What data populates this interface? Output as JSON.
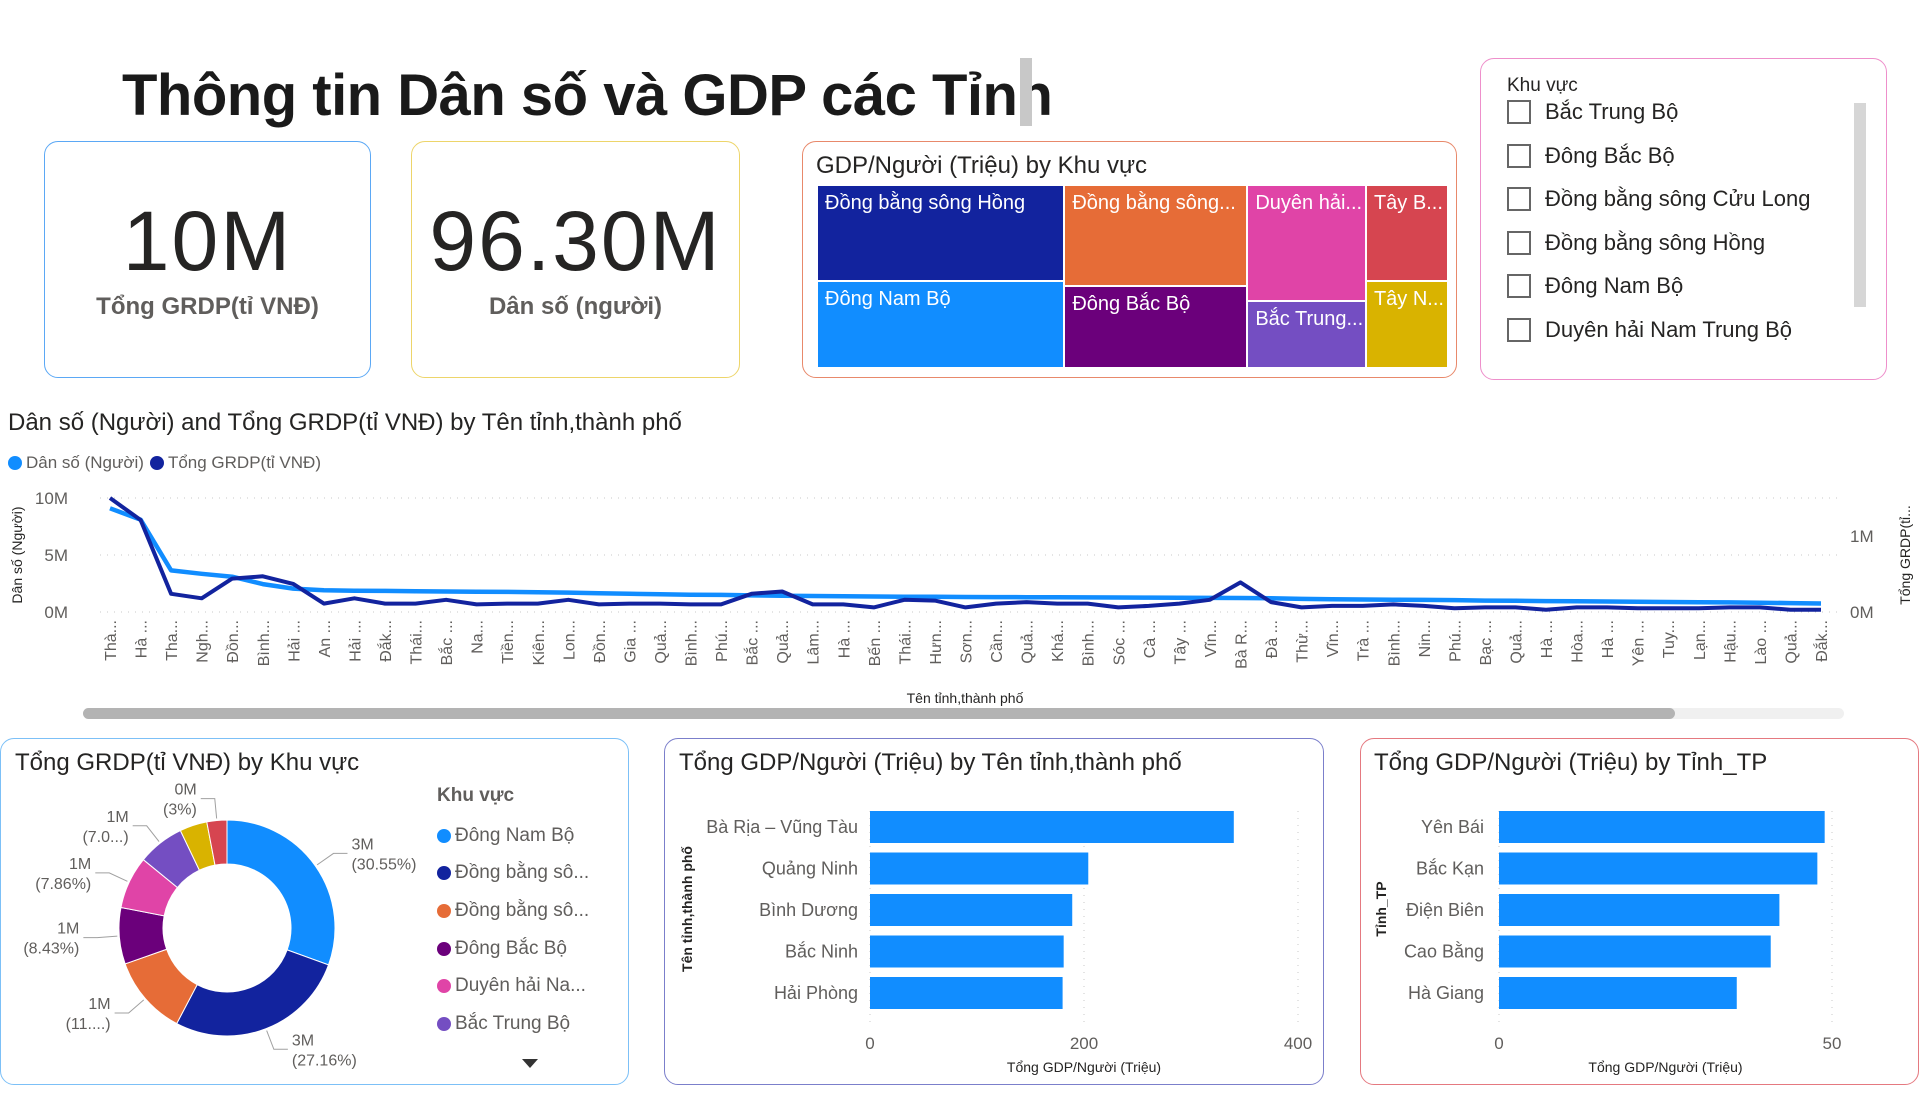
{
  "header": {
    "title": "Thông tin Dân số và GDP các Tỉnh"
  },
  "kpis": [
    {
      "value": "10M",
      "label": "Tổng GRDP(tỉ VNĐ)",
      "border": "#5BA8F5"
    },
    {
      "value": "96.30M",
      "label": "Dân số (người)",
      "border": "#EDD56A"
    }
  ],
  "treemap": {
    "title": "GDP/Người (Triệu) by Khu vực",
    "border": "#E8896B",
    "tiles": [
      {
        "label": "Đồng bằng sông Hồng",
        "color": "#12239E"
      },
      {
        "label": "Đông Nam Bộ",
        "color": "#118DFF"
      },
      {
        "label": "Đồng bằng sông...",
        "color": "#E66C37"
      },
      {
        "label": "Đông Bắc Bộ",
        "color": "#6B007B"
      },
      {
        "label": "Duyên hải...",
        "color": "#E044A7"
      },
      {
        "label": "Bắc Trung...",
        "color": "#744EC2"
      },
      {
        "label": "Tây B...",
        "color": "#D64550"
      },
      {
        "label": "Tây N...",
        "color": "#D9B300"
      }
    ]
  },
  "slicer": {
    "title": "Khu vực",
    "border": "#EE8FCB",
    "items": [
      {
        "label": "Bắc Trung Bộ",
        "checked": false
      },
      {
        "label": "Đông Bắc Bộ",
        "checked": false
      },
      {
        "label": "Đồng bằng sông Cửu Long",
        "checked": false
      },
      {
        "label": "Đồng bằng sông Hồng",
        "checked": false
      },
      {
        "label": "Đông Nam Bộ",
        "checked": false
      },
      {
        "label": "Duyên hải Nam Trung Bộ",
        "checked": false
      }
    ]
  },
  "chart_data": [
    {
      "type": "line",
      "title": "Dân số (Người) and Tổng GRDP(tỉ VNĐ) by Tên tỉnh,thành phố",
      "xlabel": "Tên tỉnh,thành phố",
      "ylabel": "Dân số (Người)",
      "y2label": "Tổng GRDP(tỉ...",
      "ylim": [
        0,
        10000000
      ],
      "yticks": [
        {
          "v": 0,
          "t": "0M"
        },
        {
          "v": 5000000,
          "t": "5M"
        },
        {
          "v": 10000000,
          "t": "10M"
        }
      ],
      "y2lim": [
        0,
        1500000
      ],
      "y2ticks": [
        {
          "v": 0,
          "t": "0M"
        },
        {
          "v": 1000000,
          "t": "1M"
        }
      ],
      "grid": true,
      "legend_position": "top-left",
      "categories": [
        "Thà...",
        "Hà ...",
        "Tha...",
        "Ngh...",
        "Đồn...",
        "Bình...",
        "Hải ...",
        "An ...",
        "Hải ...",
        "Đắk...",
        "Thái...",
        "Bắc ...",
        "Na...",
        "Tiền...",
        "Kiên...",
        "Lon...",
        "Đồn...",
        "Gia ...",
        "Quả...",
        "Bình...",
        "Phú...",
        "Bắc ...",
        "Quả...",
        "Lâm...",
        "Hà ...",
        "Bến ...",
        "Thái...",
        "Hưn...",
        "Sơn...",
        "Cần...",
        "Quả...",
        "Khá...",
        "Bình...",
        "Sóc ...",
        "Cà ...",
        "Tây ...",
        "Vĩn...",
        "Bà R...",
        "Đà ...",
        "Thừ...",
        "Vĩn...",
        "Trà ...",
        "Bình...",
        "Nin...",
        "Phú...",
        "Bạc ...",
        "Quả...",
        "Hà ...",
        "Hòa...",
        "Hà ...",
        "Yên ...",
        "Tuy...",
        "Lạn...",
        "Hậu...",
        "Lào ...",
        "Quả...",
        "Đắk..."
      ],
      "series": [
        {
          "name": "Dân số (Người)",
          "color": "#118DFF",
          "axis": "left",
          "values": [
            9100000,
            8100000,
            3650000,
            3350000,
            3100000,
            2450000,
            2050000,
            1900000,
            1870000,
            1850000,
            1820000,
            1800000,
            1780000,
            1760000,
            1730000,
            1700000,
            1650000,
            1600000,
            1550000,
            1520000,
            1500000,
            1460000,
            1420000,
            1400000,
            1380000,
            1360000,
            1340000,
            1330000,
            1320000,
            1310000,
            1300000,
            1290000,
            1280000,
            1270000,
            1260000,
            1250000,
            1240000,
            1230000,
            1200000,
            1150000,
            1120000,
            1100000,
            1080000,
            1060000,
            1040000,
            1000000,
            980000,
            960000,
            940000,
            920000,
            900000,
            880000,
            860000,
            840000,
            820000,
            780000,
            750000
          ]
        },
        {
          "name": "Tổng GRDP(tỉ VNĐ)",
          "color": "#12239E",
          "axis": "right",
          "values": [
            1500000,
            1210000,
            240000,
            180000,
            440000,
            470000,
            370000,
            110000,
            180000,
            110000,
            110000,
            160000,
            100000,
            110000,
            110000,
            160000,
            100000,
            110000,
            110000,
            100000,
            100000,
            240000,
            270000,
            100000,
            100000,
            60000,
            160000,
            150000,
            60000,
            110000,
            130000,
            110000,
            110000,
            60000,
            80000,
            110000,
            160000,
            390000,
            130000,
            60000,
            80000,
            80000,
            100000,
            80000,
            50000,
            60000,
            60000,
            30000,
            60000,
            60000,
            50000,
            50000,
            50000,
            60000,
            60000,
            30000,
            30000
          ]
        }
      ]
    },
    {
      "type": "pie",
      "title": "Tổng GRDP(tỉ VNĐ) by Khu vực",
      "legend_title": "Khu vực",
      "legend_position": "right",
      "slices": [
        {
          "name": "Đông Nam Bộ",
          "legend": "Đông Nam Bộ",
          "percent": 30.55,
          "label": "3M (30.55%)",
          "color": "#118DFF"
        },
        {
          "name": "Đồng bằng sông Hồng",
          "legend": "Đồng bằng sô...",
          "percent": 27.16,
          "label": "3M (27.16%)",
          "color": "#12239E"
        },
        {
          "name": "Đồng bằng sông Cửu Long",
          "legend": "Đồng bằng sô...",
          "percent": 11.9,
          "label": "1M (11....)",
          "color": "#E66C37"
        },
        {
          "name": "Đông Bắc Bộ",
          "legend": "Đông Bắc Bộ",
          "percent": 8.43,
          "label": "1M (8.43%)",
          "color": "#6B007B"
        },
        {
          "name": "Duyên hải Nam Trung Bộ",
          "legend": "Duyên hải Na...",
          "percent": 7.86,
          "label": "1M (7.86%)",
          "color": "#E044A7"
        },
        {
          "name": "Bắc Trung Bộ",
          "legend": "Bắc Trung Bộ",
          "percent": 7.0,
          "label": "1M (7.0...)",
          "color": "#744EC2"
        },
        {
          "name": "Tây Nguyên",
          "percent": 4.1,
          "label": "",
          "color": "#D9B300"
        },
        {
          "name": "Tây Bắc",
          "percent": 3.0,
          "label": "0M (3%)",
          "color": "#D64550"
        }
      ]
    },
    {
      "type": "bar",
      "title": "Tổng GDP/Người (Triệu) by Tên tỉnh,thành phố",
      "xlabel": "Tổng GDP/Người (Triệu)",
      "ylabel": "Tên tỉnh,thành phố",
      "categories": [
        "Bà Rịa – Vũng Tàu",
        "Quảng Ninh",
        "Bình Dương",
        "Bắc Ninh",
        "Hải Phòng"
      ],
      "values": [
        340,
        204,
        189,
        181,
        180
      ],
      "xlim": [
        0,
        400
      ],
      "xticks": [
        0,
        200,
        400
      ],
      "color": "#118DFF",
      "border": "#7B7FCB"
    },
    {
      "type": "bar",
      "title": "Tổng GDP/Người (Triệu) by Tỉnh_TP",
      "xlabel": "Tổng GDP/Người (Triệu)",
      "ylabel": "Tỉnh_TP",
      "categories": [
        "Yên Bái",
        "Bắc Kạn",
        "Điện Biên",
        "Cao Bằng",
        "Hà Giang"
      ],
      "values": [
        48.9,
        47.8,
        42.1,
        40.8,
        35.7
      ],
      "xlim": [
        0,
        50
      ],
      "xticks": [
        0,
        50
      ],
      "color": "#118DFF",
      "border": "#E57980"
    }
  ]
}
